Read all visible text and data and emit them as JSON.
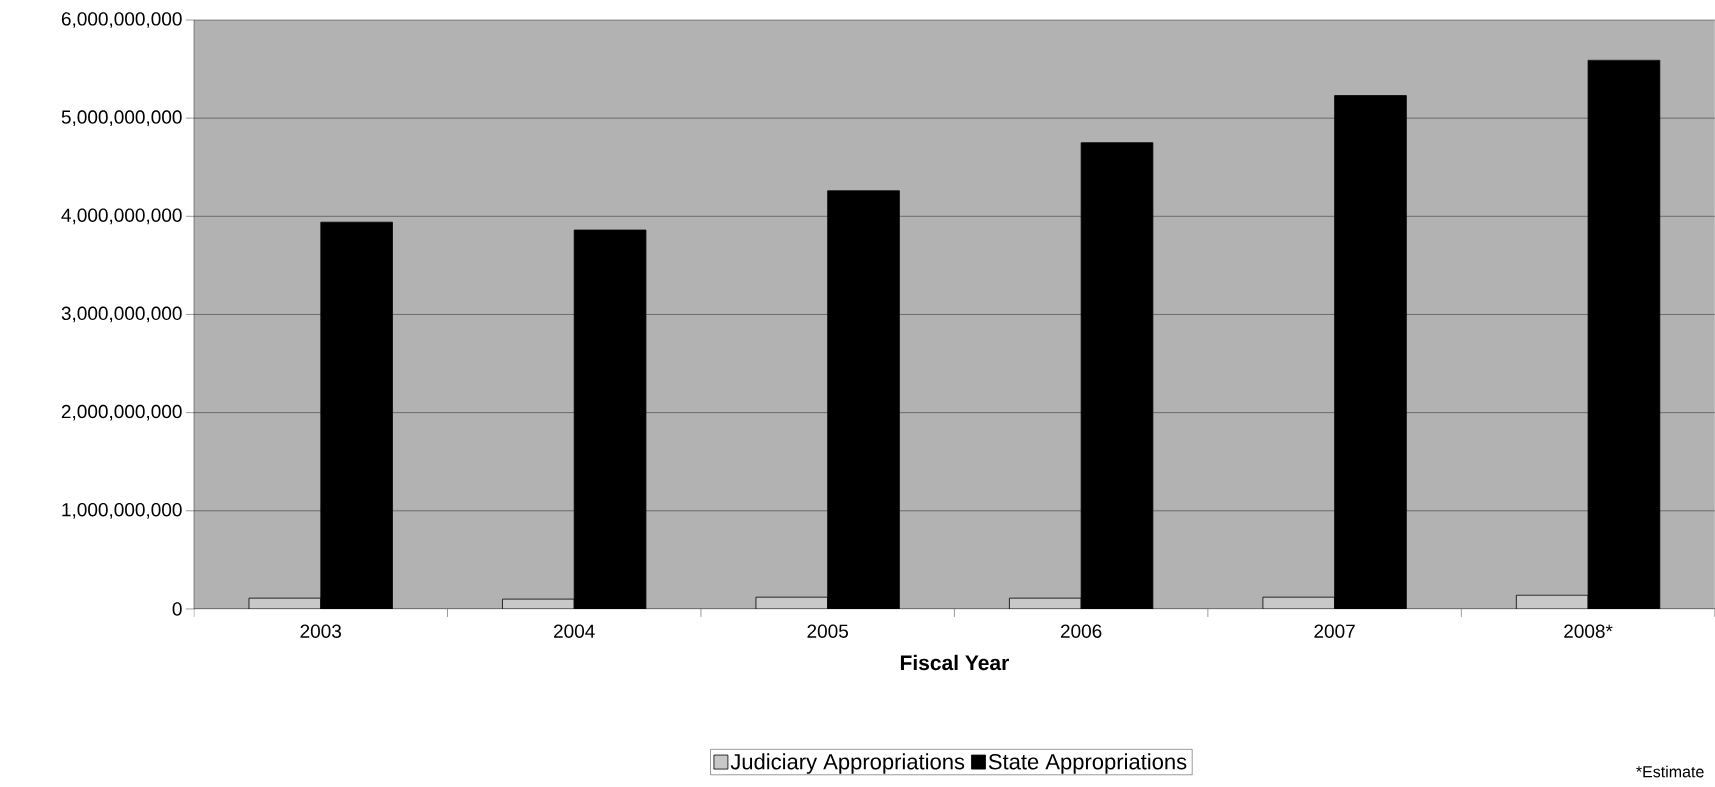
{
  "chart_data": {
    "type": "bar",
    "xlabel": "Fiscal Year",
    "categories": [
      "2003",
      "2004",
      "2005",
      "2006",
      "2007",
      "2008*"
    ],
    "series": [
      {
        "name": "Judiciary Appropriations",
        "color": "#c8c8c8",
        "values": [
          110000000,
          100000000,
          120000000,
          110000000,
          120000000,
          140000000
        ]
      },
      {
        "name": "State Appropriations",
        "color": "#000000",
        "values": [
          3940000000,
          3860000000,
          4260000000,
          4750000000,
          5230000000,
          5590000000
        ]
      }
    ],
    "ylim": [
      0,
      6000000000
    ],
    "yticks": [
      {
        "value": 0,
        "label": "0"
      },
      {
        "value": 1000000000,
        "label": "1,000,000,000"
      },
      {
        "value": 2000000000,
        "label": "2,000,000,000"
      },
      {
        "value": 3000000000,
        "label": "3,000,000,000"
      },
      {
        "value": 4000000000,
        "label": "4,000,000,000"
      },
      {
        "value": 5000000000,
        "label": "5,000,000,000"
      },
      {
        "value": 6000000000,
        "label": "6,000,000,000"
      }
    ],
    "grid": "y",
    "legend": "bottom",
    "annotations": [
      "*Estimate"
    ]
  }
}
